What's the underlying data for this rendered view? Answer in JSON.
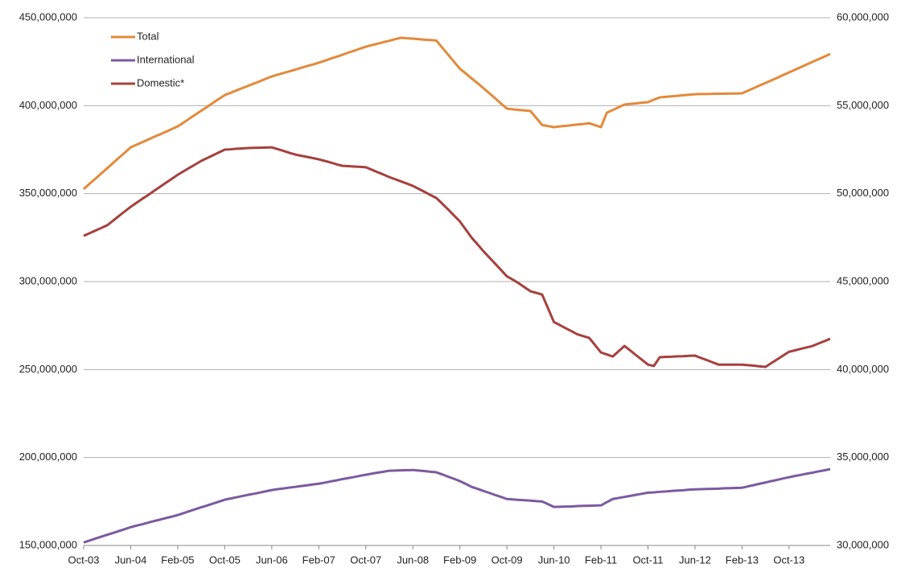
{
  "chart_data": {
    "type": "line",
    "categories": [
      "Oct-03",
      null,
      null,
      null,
      null,
      null,
      null,
      null,
      "Jun-04",
      null,
      null,
      null,
      null,
      null,
      null,
      null,
      "Feb-05",
      null,
      null,
      null,
      null,
      null,
      null,
      null,
      "Oct-05",
      null,
      null,
      null,
      null,
      null,
      null,
      null,
      "Jun-06",
      null,
      null,
      null,
      null,
      null,
      null,
      null,
      "Feb-07",
      null,
      null,
      null,
      null,
      null,
      null,
      null,
      "Oct-07",
      null,
      null,
      null,
      null,
      null,
      null,
      null,
      "Jun-08",
      null,
      null,
      null,
      null,
      null,
      null,
      null,
      "Feb-09",
      null,
      null,
      null,
      null,
      null,
      null,
      null,
      "Oct-09",
      null,
      null,
      null,
      null,
      null,
      null,
      null,
      "Jun-10",
      null,
      null,
      null,
      null,
      null,
      null,
      null,
      "Feb-11",
      null,
      null,
      null,
      null,
      null,
      null,
      null,
      "Oct-11",
      null,
      null,
      null,
      null,
      null,
      null,
      null,
      "Jun-12",
      null,
      null,
      null,
      null,
      null,
      null,
      null,
      "Feb-13",
      null,
      null,
      null,
      null,
      null,
      null,
      null,
      "Oct-13",
      null,
      null,
      null,
      null,
      null,
      null,
      null
    ],
    "series": [
      {
        "name": "Total",
        "color": "#e28a3b",
        "values": [
          352600000,
          355600000,
          358500000,
          361500000,
          364400000,
          367400000,
          370400000,
          373300000,
          376300000,
          377800000,
          379300000,
          380800000,
          382300000,
          383700000,
          385200000,
          386700000,
          388200000,
          390400000,
          392700000,
          394900000,
          397100000,
          399300000,
          401600000,
          403800000,
          406000000,
          407300000,
          408700000,
          410000000,
          411300000,
          412600000,
          413900000,
          415300000,
          416600000,
          417600000,
          418600000,
          419500000,
          420500000,
          421500000,
          422500000,
          423400000,
          424400000,
          425500000,
          426700000,
          427800000,
          428900000,
          430100000,
          431200000,
          432400000,
          433500000,
          434400000,
          435200000,
          436100000,
          436900000,
          437800000,
          438600000,
          438300000,
          438100000,
          437800000,
          437500000,
          437300000,
          437000000,
          433000000,
          429000000,
          425000000,
          421000000,
          418300000,
          415500000,
          412800000,
          410000000,
          407100000,
          404200000,
          401200000,
          398300000,
          397900000,
          397600000,
          397300000,
          397000000,
          393000000,
          389000000,
          388400000,
          387800000,
          388200000,
          388500000,
          388900000,
          389300000,
          389600000,
          390000000,
          388900000,
          387800000,
          396000000,
          397500000,
          399100000,
          400600000,
          401000000,
          401300000,
          401700000,
          402000000,
          403400000,
          404700000,
          405000000,
          405300000,
          405600000,
          405900000,
          406200000,
          406500000,
          406600000,
          406600000,
          406700000,
          406800000,
          406800000,
          406900000,
          406900000,
          407000000,
          408500000,
          410000000,
          411500000,
          412900000,
          414400000,
          415900000,
          417400000,
          418900000,
          420400000,
          421900000,
          423400000,
          424900000,
          426400000,
          427900000,
          429400000
        ]
      },
      {
        "name": "International",
        "color": "#7b5aa0",
        "axis": "y2",
        "values": [
          30170000,
          30280000,
          30390000,
          30500000,
          30610000,
          30710000,
          30820000,
          30930000,
          31040000,
          31130000,
          31210000,
          31300000,
          31390000,
          31470000,
          31560000,
          31640000,
          31730000,
          31840000,
          31950000,
          32060000,
          32170000,
          32270000,
          32380000,
          32490000,
          32600000,
          32670000,
          32740000,
          32810000,
          32880000,
          32940000,
          33010000,
          33080000,
          33150000,
          33200000,
          33240000,
          33290000,
          33330000,
          33380000,
          33420000,
          33470000,
          33510000,
          33570000,
          33640000,
          33700000,
          33770000,
          33830000,
          33890000,
          33960000,
          34020000,
          34080000,
          34140000,
          34190000,
          34250000,
          34260000,
          34270000,
          34280000,
          34290000,
          34260000,
          34230000,
          34190000,
          34160000,
          34040000,
          33910000,
          33790000,
          33660000,
          33500000,
          33330000,
          33220000,
          33100000,
          32990000,
          32870000,
          32760000,
          32640000,
          32620000,
          32590000,
          32570000,
          32550000,
          32520000,
          32500000,
          32350000,
          32190000,
          32200000,
          32210000,
          32220000,
          32240000,
          32250000,
          32260000,
          32270000,
          32280000,
          32460000,
          32640000,
          32700000,
          32760000,
          32820000,
          32880000,
          32940000,
          33000000,
          33020000,
          33050000,
          33070000,
          33100000,
          33120000,
          33140000,
          33170000,
          33190000,
          33200000,
          33210000,
          33220000,
          33230000,
          33250000,
          33260000,
          33270000,
          33280000,
          33360000,
          33430000,
          33510000,
          33580000,
          33660000,
          33730000,
          33810000,
          33880000,
          33950000,
          34010000,
          34080000,
          34140000,
          34210000,
          34270000,
          34340000
        ]
      },
      {
        "name": "Domestic*",
        "color": "#a6403e",
        "values": [
          326000000,
          327500000,
          329000000,
          330500000,
          332000000,
          334600000,
          337300000,
          339900000,
          342500000,
          344800000,
          347100000,
          349300000,
          351600000,
          353900000,
          356200000,
          358400000,
          360700000,
          362700000,
          364700000,
          366600000,
          368600000,
          370200000,
          371800000,
          373400000,
          375000000,
          375200000,
          375500000,
          375700000,
          375900000,
          376000000,
          376100000,
          376200000,
          376300000,
          375300000,
          374300000,
          373200000,
          372200000,
          371500000,
          370900000,
          370200000,
          369500000,
          368600000,
          367700000,
          366700000,
          365800000,
          365600000,
          365400000,
          365200000,
          365000000,
          363600000,
          362200000,
          360800000,
          359400000,
          358200000,
          356900000,
          355700000,
          354400000,
          352700000,
          351000000,
          349200000,
          347500000,
          344300000,
          341000000,
          337600000,
          334200000,
          329600000,
          325000000,
          321200000,
          317300000,
          313700000,
          310200000,
          306600000,
          303000000,
          301100000,
          299100000,
          296800000,
          294500000,
          293600000,
          292600000,
          284800000,
          277000000,
          275300000,
          273500000,
          271800000,
          270000000,
          269000000,
          268000000,
          263900000,
          259700000,
          258600000,
          257400000,
          260400000,
          263400000,
          260800000,
          258100000,
          255500000,
          252800000,
          252000000,
          257000000,
          257200000,
          257300000,
          257500000,
          257600000,
          257800000,
          257900000,
          256600000,
          255400000,
          254100000,
          252800000,
          252800000,
          252800000,
          252800000,
          252800000,
          252500000,
          252200000,
          251800000,
          251500000,
          253700000,
          255800000,
          258000000,
          260100000,
          260900000,
          261800000,
          262600000,
          263400000,
          264800000,
          266100000,
          267500000
        ]
      }
    ],
    "ylim": [
      150000000,
      450000000
    ],
    "yticks": [
      {
        "value": 150000000,
        "label": "150,000,000"
      },
      {
        "value": 200000000,
        "label": "200,000,000"
      },
      {
        "value": 250000000,
        "label": "250,000,000"
      },
      {
        "value": 300000000,
        "label": "300,000,000"
      },
      {
        "value": 350000000,
        "label": "350,000,000"
      },
      {
        "value": 400000000,
        "label": "400,000,000"
      },
      {
        "value": 450000000,
        "label": "450,000,000"
      }
    ],
    "y2lim": [
      30000000,
      60000000
    ],
    "y2ticks": [
      {
        "value": 30000000,
        "label": "30,000,000"
      },
      {
        "value": 35000000,
        "label": "35,000,000"
      },
      {
        "value": 40000000,
        "label": "40,000,000"
      },
      {
        "value": 45000000,
        "label": "45,000,000"
      },
      {
        "value": 50000000,
        "label": "50,000,000"
      },
      {
        "value": 55000000,
        "label": "55,000,000"
      },
      {
        "value": 60000000,
        "label": "60,000,000"
      }
    ],
    "grid": true,
    "legend": "top-left"
  }
}
